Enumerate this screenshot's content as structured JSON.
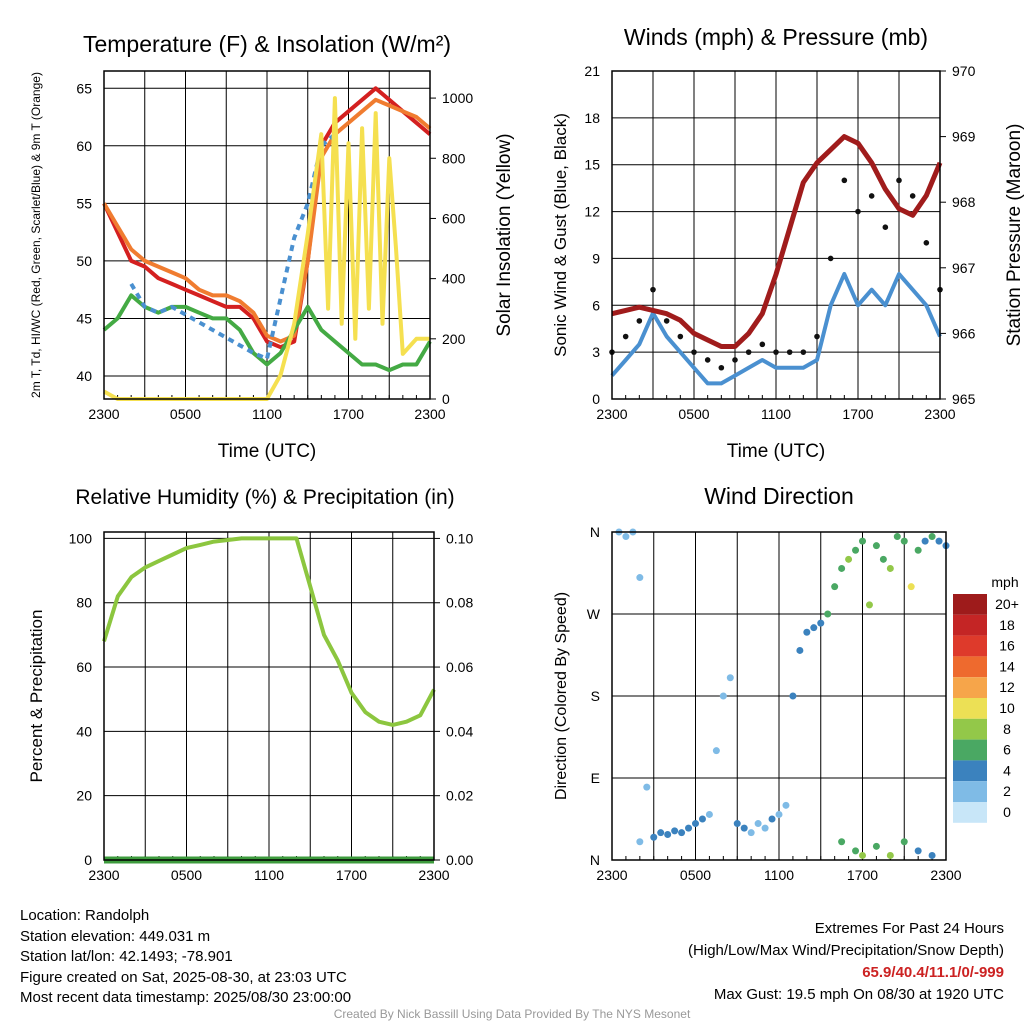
{
  "chart_data": [
    {
      "type": "line",
      "title": "Temperature (F) & Insolation (W/m²)",
      "xlabel": "Time (UTC)",
      "ylabel_left": "2m T, Td, HI/WC (Red, Green, Scarlet/Blue) & 9m T (Orange)",
      "ylabel_right": "Solar Insolation (Yellow)",
      "x_ticks": [
        "2300",
        "0500",
        "1100",
        "1700",
        "2300"
      ],
      "x_range": [
        0,
        24
      ],
      "y_ticks": [
        40,
        45,
        50,
        55,
        60,
        65
      ],
      "ylim": [
        38,
        66.5
      ],
      "y2_ticks": [
        0,
        200,
        400,
        600,
        800,
        1000
      ],
      "y2lim": [
        0,
        1090
      ],
      "series": [
        {
          "name": "2m T",
          "color": "#d42020",
          "axis": "left",
          "x": [
            0,
            1,
            2,
            3,
            4,
            5,
            6,
            7,
            8,
            9,
            10,
            11,
            12,
            13,
            14,
            15,
            16,
            17,
            18,
            19,
            20,
            21,
            22,
            23,
            24
          ],
          "values": [
            55,
            52.5,
            50,
            49.5,
            48.5,
            48,
            47.5,
            47,
            46.5,
            46,
            46,
            45,
            43,
            42.5,
            43,
            50,
            60,
            62,
            63,
            64,
            65,
            64,
            63,
            62,
            61
          ]
        },
        {
          "name": "9m T",
          "color": "#f07c30",
          "axis": "left",
          "x": [
            0,
            1,
            2,
            3,
            4,
            5,
            6,
            7,
            8,
            9,
            10,
            11,
            12,
            13,
            14,
            15,
            16,
            17,
            18,
            19,
            20,
            21,
            22,
            23,
            24
          ],
          "values": [
            55,
            53,
            51,
            50,
            49.5,
            49,
            48.5,
            47.5,
            47,
            47,
            46.5,
            45.5,
            43.5,
            43,
            43.5,
            50,
            59,
            61,
            62,
            63,
            64,
            63.5,
            63,
            62.5,
            61.5
          ]
        },
        {
          "name": "2m Td",
          "color": "#44aa44",
          "axis": "left",
          "x": [
            0,
            1,
            2,
            3,
            4,
            5,
            6,
            7,
            8,
            9,
            10,
            11,
            12,
            13,
            14,
            15,
            16,
            17,
            18,
            19,
            20,
            21,
            22,
            23,
            24
          ],
          "values": [
            44,
            45,
            47,
            46,
            45.5,
            46,
            46,
            45.5,
            45,
            45,
            44,
            42,
            41,
            42,
            44,
            46,
            44,
            43,
            42,
            41,
            41,
            40.5,
            41,
            41,
            43
          ]
        },
        {
          "name": "HI/WC",
          "color": "#4a90d0",
          "axis": "left",
          "x": [
            2,
            3,
            4,
            5,
            11,
            12,
            14,
            15,
            16,
            17
          ],
          "values": [
            48,
            46,
            45.5,
            46,
            42,
            41.5,
            52,
            55,
            60,
            61
          ]
        },
        {
          "name": "Solar Insolation",
          "color": "#f5e050",
          "axis": "right",
          "x": [
            0,
            1,
            2,
            3,
            4,
            5,
            6,
            7,
            8,
            9,
            10,
            11,
            12,
            13,
            14,
            15,
            16,
            16.5,
            17,
            17.5,
            18,
            18.5,
            19,
            19.5,
            20,
            20.5,
            21,
            21.5,
            22,
            23,
            24
          ],
          "values": [
            25,
            0,
            0,
            0,
            0,
            0,
            0,
            0,
            0,
            0,
            0,
            0,
            0,
            80,
            250,
            550,
            880,
            300,
            1000,
            250,
            850,
            200,
            900,
            300,
            950,
            250,
            800,
            500,
            150,
            200,
            200
          ]
        }
      ]
    },
    {
      "type": "line",
      "title": "Winds (mph) & Pressure (mb)",
      "xlabel": "Time (UTC)",
      "ylabel_left": "Sonic Wind & Gust (Blue, Black)",
      "ylabel_right": "Station Pressure (Maroon)",
      "x_ticks": [
        "2300",
        "0500",
        "1100",
        "1700",
        "2300"
      ],
      "x_range": [
        0,
        24
      ],
      "y_ticks": [
        0,
        3,
        6,
        9,
        12,
        15,
        18,
        21
      ],
      "ylim": [
        0,
        21
      ],
      "y2_ticks": [
        965,
        966,
        967,
        968,
        969,
        970
      ],
      "y2lim": [
        965,
        970
      ],
      "series": [
        {
          "name": "Sonic Wind",
          "color": "#4a90d0",
          "axis": "left",
          "x": [
            0,
            1,
            2,
            3,
            4,
            5,
            6,
            7,
            8,
            9,
            10,
            11,
            12,
            13,
            14,
            15,
            16,
            17,
            18,
            19,
            20,
            21,
            22,
            23,
            24
          ],
          "values": [
            1.5,
            2.5,
            3.5,
            5.5,
            4,
            3,
            2,
            1,
            1,
            1.5,
            2,
            2.5,
            2,
            2,
            2,
            2.5,
            6,
            8,
            6,
            7,
            6,
            8,
            7,
            6,
            4
          ]
        },
        {
          "name": "Gust",
          "color": "#111111",
          "axis": "left",
          "x": [
            0,
            1,
            2,
            3,
            4,
            5,
            6,
            7,
            8,
            9,
            10,
            11,
            12,
            13,
            14,
            15,
            16,
            17,
            18,
            19,
            20,
            21,
            22,
            23,
            24
          ],
          "values": [
            3,
            4,
            5,
            7,
            5,
            4,
            3,
            2.5,
            2,
            2.5,
            3,
            3.5,
            3,
            3,
            3,
            4,
            9,
            14,
            12,
            13,
            11,
            14,
            13,
            10,
            7
          ]
        },
        {
          "name": "Station Pressure",
          "color": "#a01c1c",
          "axis": "right",
          "x": [
            0,
            1,
            2,
            3,
            4,
            5,
            6,
            7,
            8,
            9,
            10,
            11,
            12,
            13,
            14,
            15,
            16,
            17,
            18,
            19,
            20,
            21,
            22,
            23,
            24
          ],
          "values": [
            966.3,
            966.35,
            966.4,
            966.35,
            966.3,
            966.2,
            966.0,
            965.9,
            965.8,
            965.8,
            966.0,
            966.3,
            966.9,
            967.6,
            968.3,
            968.6,
            968.8,
            969.0,
            968.9,
            968.6,
            968.2,
            967.9,
            967.8,
            968.1,
            968.6
          ]
        }
      ]
    },
    {
      "type": "line",
      "title": "Relative Humidity (%) & Precipitation (in)",
      "ylabel_left": "Percent & Precipitation",
      "x_ticks": [
        "2300",
        "0500",
        "1100",
        "1700",
        "2300"
      ],
      "x_range": [
        0,
        24
      ],
      "y_ticks": [
        0,
        20,
        40,
        60,
        80,
        100
      ],
      "ylim": [
        0,
        102
      ],
      "y2_ticks": [
        "0.00",
        "0.02",
        "0.04",
        "0.06",
        "0.08",
        "0.10"
      ],
      "y2lim": [
        0,
        0.102
      ],
      "series": [
        {
          "name": "Relative Humidity",
          "color": "#8cc63f",
          "axis": "left",
          "x": [
            0,
            1,
            2,
            3,
            4,
            5,
            6,
            7,
            8,
            9,
            10,
            11,
            12,
            13,
            14,
            15,
            16,
            17,
            18,
            19,
            20,
            21,
            22,
            23,
            24
          ],
          "values": [
            68,
            82,
            88,
            91,
            93,
            95,
            97,
            98,
            99,
            99.5,
            100,
            100,
            100,
            100,
            100,
            85,
            70,
            62,
            52,
            46,
            43,
            42,
            43,
            45,
            53
          ]
        },
        {
          "name": "Precipitation",
          "color": "#3d9b3d",
          "axis": "right",
          "x": [
            0,
            24
          ],
          "values": [
            0,
            0
          ]
        }
      ]
    },
    {
      "type": "scatter",
      "title": "Wind Direction",
      "ylabel_left": "Direction (Colored By Speed)",
      "x_ticks": [
        "2300",
        "0500",
        "1100",
        "1700",
        "2300"
      ],
      "x_range": [
        0,
        24
      ],
      "y_ticks": [
        "N",
        "E",
        "S",
        "W",
        "N"
      ],
      "ylim": [
        0,
        360
      ],
      "legend": {
        "title": "mph",
        "position": "right",
        "labels": [
          "20+",
          "18",
          "16",
          "14",
          "12",
          "10",
          "8",
          "6",
          "4",
          "2",
          "0"
        ],
        "colors": [
          "#9e1b1b",
          "#c42525",
          "#de3a2b",
          "#ee6a2e",
          "#f6a54a",
          "#ece055",
          "#93c849",
          "#4aa863",
          "#3b82be",
          "#7fbbe6",
          "#c8e6f8"
        ]
      },
      "points": [
        [
          0.5,
          360,
          2
        ],
        [
          1,
          355,
          2
        ],
        [
          1.5,
          360,
          2
        ],
        [
          2,
          310,
          1
        ],
        [
          2,
          20,
          1
        ],
        [
          2.5,
          80,
          2
        ],
        [
          3,
          25,
          4
        ],
        [
          3.5,
          30,
          4
        ],
        [
          4,
          28,
          4
        ],
        [
          4.5,
          32,
          4
        ],
        [
          5,
          30,
          3
        ],
        [
          5.5,
          35,
          4
        ],
        [
          6,
          40,
          4
        ],
        [
          6.5,
          45,
          3
        ],
        [
          7,
          50,
          2
        ],
        [
          7.5,
          120,
          1
        ],
        [
          8,
          180,
          1
        ],
        [
          8.5,
          200,
          1
        ],
        [
          9,
          40,
          3
        ],
        [
          9.5,
          35,
          3
        ],
        [
          10,
          30,
          2
        ],
        [
          10.5,
          40,
          2
        ],
        [
          11,
          35,
          2
        ],
        [
          11.5,
          45,
          3
        ],
        [
          12,
          50,
          2
        ],
        [
          12.5,
          60,
          2
        ],
        [
          13,
          180,
          3
        ],
        [
          13.5,
          230,
          3
        ],
        [
          14,
          250,
          4
        ],
        [
          14.5,
          255,
          4
        ],
        [
          15,
          260,
          4
        ],
        [
          15.5,
          270,
          5
        ],
        [
          16,
          300,
          6
        ],
        [
          16.5,
          320,
          6
        ],
        [
          17,
          330,
          7
        ],
        [
          17.5,
          340,
          6
        ],
        [
          18,
          350,
          6
        ],
        [
          18.5,
          280,
          8
        ],
        [
          19,
          345,
          5
        ],
        [
          19.5,
          330,
          6
        ],
        [
          20,
          320,
          7
        ],
        [
          20.5,
          355,
          6
        ],
        [
          21,
          350,
          5
        ],
        [
          21.5,
          300,
          10
        ],
        [
          22,
          340,
          6
        ],
        [
          22.5,
          350,
          4
        ],
        [
          23,
          355,
          5
        ],
        [
          23.5,
          350,
          4
        ],
        [
          24,
          345,
          4
        ],
        [
          16.5,
          20,
          5
        ],
        [
          17.5,
          10,
          6
        ],
        [
          18,
          5,
          7
        ],
        [
          19,
          15,
          6
        ],
        [
          20,
          5,
          8
        ],
        [
          21,
          20,
          6
        ],
        [
          22,
          10,
          4
        ],
        [
          23,
          5,
          3
        ]
      ]
    }
  ],
  "footer": {
    "location": "Location: Randolph",
    "elevation": "Station elevation: 449.031 m",
    "latlon": "Station lat/lon: 42.1493; -78.901",
    "created": "Figure created on Sat, 2025-08-30, at 23:03 UTC",
    "recent": "Most recent data timestamp: 2025/08/30 23:00:00",
    "extremes_title": "Extremes For Past 24 Hours",
    "extremes_desc": "(High/Low/Max Wind/Precipitation/Snow Depth)",
    "extremes_values": "65.9/40.4/11.1/0/-999",
    "max_gust": "Max Gust: 19.5 mph On 08/30 at 1920 UTC",
    "credit": "Created By Nick Bassill Using Data Provided By The NYS Mesonet"
  }
}
